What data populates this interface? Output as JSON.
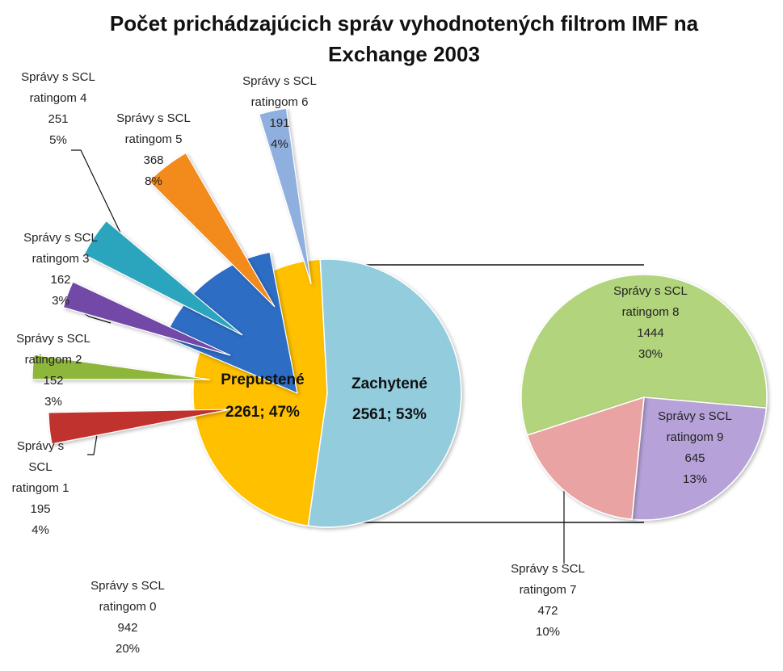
{
  "chart_data": {
    "type": "pie",
    "variant": "bar-of-pie (pie of pie)",
    "title_line1": "Počet prichádzajúcich správ vyhodnotených filtrom IMF na",
    "title_line2": "Exchange 2003",
    "main": [
      {
        "name": "Prepustené",
        "value": 2261,
        "percent": "47%",
        "color": "#FFC000"
      },
      {
        "name": "Zachytené",
        "value": 2561,
        "percent": "53%",
        "color": "#93CDDD"
      }
    ],
    "prepustene_parts": [
      {
        "name_l1": "Správy s SCL",
        "name_l2": "ratingom 0",
        "value": 942,
        "percent": "20%",
        "color": "#2E6DC4"
      },
      {
        "name_l1": "Správy s",
        "name_l2": "SCL",
        "name_l3": "ratingom 1",
        "value": 195,
        "percent": "4%",
        "color": "#C0312E"
      },
      {
        "name_l1": "Správy s SCL",
        "name_l2": "ratingom 2",
        "value": 152,
        "percent": "3%",
        "color": "#8DB63A"
      },
      {
        "name_l1": "Správy s SCL",
        "name_l2": "ratingom 3",
        "value": 162,
        "percent": "3%",
        "color": "#7349A8"
      },
      {
        "name_l1": "Správy s SCL",
        "name_l2": "ratingom 4",
        "value": 251,
        "percent": "5%",
        "color": "#2BA5BD"
      },
      {
        "name_l1": "Správy s SCL",
        "name_l2": "ratingom 5",
        "value": 368,
        "percent": "8%",
        "color": "#F28A1D"
      },
      {
        "name_l1": "Správy s SCL",
        "name_l2": "ratingom 6",
        "value": 191,
        "percent": "4%",
        "color": "#8FAFDF"
      }
    ],
    "zachytene_parts": [
      {
        "name_l1": "Správy s SCL",
        "name_l2": "ratingom 7",
        "value": 472,
        "percent": "10%",
        "color": "#E8A3A2"
      },
      {
        "name_l1": "Správy s SCL",
        "name_l2": "ratingom 8",
        "value": 1444,
        "percent": "30%",
        "color": "#B2D47C"
      },
      {
        "name_l1": "Správy s SCL",
        "name_l2": "ratingom 9",
        "value": 645,
        "percent": "13%",
        "color": "#B6A2D8"
      }
    ]
  }
}
